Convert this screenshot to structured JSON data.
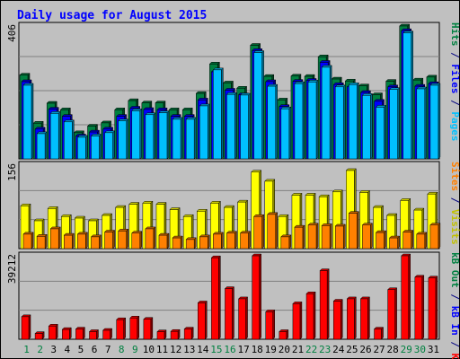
{
  "chart_data": {
    "type": "bar",
    "title": "Daily usage for August 2015",
    "categories": [
      "1",
      "2",
      "3",
      "4",
      "5",
      "6",
      "7",
      "8",
      "9",
      "10",
      "11",
      "12",
      "13",
      "14",
      "15",
      "16",
      "17",
      "18",
      "19",
      "20",
      "21",
      "22",
      "23",
      "24",
      "25",
      "26",
      "27",
      "28",
      "29",
      "30",
      "31"
    ],
    "weekend_days": [
      "1",
      "2",
      "8",
      "9",
      "15",
      "16",
      "22",
      "23",
      "29",
      "30"
    ],
    "panels": [
      {
        "id": "top",
        "ymax_label": "406",
        "ylim": [
          0,
          406
        ],
        "side_labels": [
          {
            "text": "Pages",
            "color": "#00c0ff"
          },
          {
            "text": " / ",
            "color": "#000080"
          },
          {
            "text": "Files",
            "color": "#0000ff"
          },
          {
            "text": " / ",
            "color": "#000080"
          },
          {
            "text": "Hits",
            "color": "#008040"
          }
        ],
        "series": [
          {
            "name": "Hits",
            "color": "#008040",
            "values": [
              256,
              109,
              170,
              150,
              80,
              100,
              110,
              150,
              178,
              171,
              171,
              150,
              150,
              200,
              290,
              232,
              216,
              347,
              252,
              180,
              253,
              252,
              312,
              244,
              238,
              223,
              196,
              237,
              406,
              241,
              250
            ]
          },
          {
            "name": "Files",
            "color": "#0000ff",
            "values": [
              236,
              91,
              152,
              130,
              70,
              82,
              91,
              130,
              155,
              151,
              150,
              130,
              130,
              180,
              266,
              210,
              196,
              331,
              236,
              160,
              237,
              240,
              295,
              227,
              220,
              203,
              176,
              220,
              392,
              222,
              230
            ]
          },
          {
            "name": "Pages",
            "color": "#00c0ff",
            "values": [
              225,
              77,
              139,
              113,
              66,
              70,
              80,
              116,
              147,
              135,
              141,
              121,
              121,
              162,
              272,
              197,
              195,
              325,
              222,
              153,
              230,
              235,
              280,
              220,
              227,
              194,
              158,
              212,
              385,
              214,
              225
            ]
          }
        ]
      },
      {
        "id": "middle",
        "ymax_label": "156",
        "ylim": [
          0,
          156
        ],
        "side_labels": [
          {
            "text": "Visits",
            "color": "#c0c000"
          },
          {
            "text": " / ",
            "color": "#000080"
          },
          {
            "text": "Sites",
            "color": "#ff8000"
          }
        ],
        "series": [
          {
            "name": "Visits",
            "color": "#ffff00",
            "values": [
              80,
              52,
              75,
              60,
              57,
              52,
              62,
              77,
              83,
              85,
              83,
              73,
              60,
              70,
              85,
              77,
              87,
              143,
              126,
              60,
              100,
              100,
              97,
              106,
              146,
              105,
              77,
              62,
              90,
              72,
              102
            ]
          },
          {
            "name": "Sites",
            "color": "#ff8000",
            "values": [
              27,
              23,
              37,
              25,
              27,
              22,
              31,
              33,
              29,
              37,
              25,
              20,
              17,
              22,
              27,
              29,
              29,
              60,
              64,
              22,
              40,
              44,
              43,
              42,
              66,
              44,
              30,
              20,
              31,
              27,
              44
            ]
          }
        ]
      },
      {
        "id": "bottom",
        "ymax_label": "39212",
        "ylim": [
          0,
          39212
        ],
        "side_labels": [
          {
            "text": "KB F",
            "color": "#ff0000"
          },
          {
            "text": " / ",
            "color": "#000080"
          },
          {
            "text": "kB In",
            "color": "#0000ff"
          },
          {
            "text": " / ",
            "color": "#000080"
          },
          {
            "text": "kB Out",
            "color": "#008040"
          }
        ],
        "series": [
          {
            "name": "KB F",
            "color": "#ff0000",
            "values": [
              10600,
              2700,
              6200,
              4600,
              4800,
              3600,
              4200,
              9200,
              10000,
              9400,
              3500,
              3700,
              4800,
              17100,
              38300,
              23800,
              19000,
              39200,
              12900,
              3600,
              16700,
              21400,
              32200,
              17900,
              19000,
              19000,
              4800,
              23300,
              40000,
              29200,
              28800
            ]
          }
        ]
      }
    ],
    "grid": true,
    "legend": "right-vertical"
  }
}
